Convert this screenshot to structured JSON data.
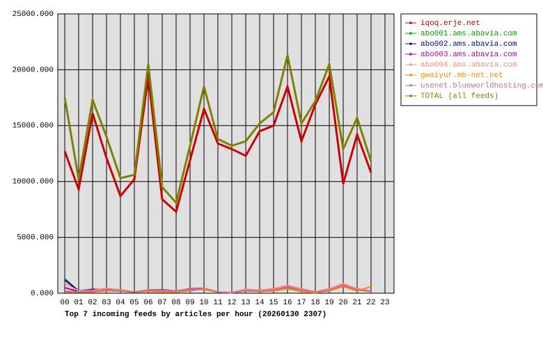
{
  "chart_data": {
    "type": "line",
    "title": "Top 7 incoming feeds by articles per hour (20260130 2307)",
    "categories": [
      "00",
      "01",
      "02",
      "03",
      "04",
      "05",
      "06",
      "07",
      "08",
      "09",
      "10",
      "11",
      "12",
      "13",
      "14",
      "15",
      "16",
      "17",
      "18",
      "19",
      "20",
      "21",
      "22",
      "23"
    ],
    "ylim": [
      0,
      25000
    ],
    "yticks": [
      {
        "value": 0,
        "label": "0.000"
      },
      {
        "value": 5000,
        "label": "5000.000"
      },
      {
        "value": 10000,
        "label": "10000.000"
      },
      {
        "value": 15000,
        "label": "15000.000"
      },
      {
        "value": 20000,
        "label": "20000.000"
      },
      {
        "value": 25000,
        "label": "25000.000"
      }
    ],
    "grid": true,
    "legend": "outside-right",
    "series": [
      {
        "name": "iqoq.erje.net",
        "color": "#cc0000",
        "values": [
          12700,
          9300,
          16100,
          12100,
          8700,
          10200,
          19400,
          8400,
          7300,
          11900,
          16500,
          13400,
          12900,
          12300,
          14500,
          15000,
          18500,
          13600,
          16900,
          19400,
          9800,
          14200,
          10800,
          null
        ]
      },
      {
        "name": "abo001.ams.abavia.com",
        "color": "#00a000",
        "values": [
          1300,
          200,
          300,
          250,
          200,
          100,
          250,
          250,
          200,
          300,
          400,
          100,
          50,
          250,
          200,
          300,
          500,
          300,
          100,
          300,
          600,
          300,
          200,
          null
        ]
      },
      {
        "name": "abo002.ams.abavia.com",
        "color": "#0000b0",
        "values": [
          1200,
          200,
          350,
          300,
          200,
          100,
          300,
          300,
          200,
          350,
          400,
          100,
          50,
          300,
          250,
          350,
          600,
          350,
          100,
          350,
          750,
          350,
          200,
          null
        ]
      },
      {
        "name": "abo003.ams.abavia.com",
        "color": "#b000b0",
        "values": [
          500,
          150,
          300,
          400,
          250,
          100,
          300,
          300,
          200,
          400,
          450,
          100,
          50,
          350,
          250,
          400,
          650,
          400,
          100,
          400,
          800,
          400,
          200,
          null
        ]
      },
      {
        "name": "abo004.ams.abavia.com",
        "color": "#ff8888",
        "values": [
          900,
          200,
          250,
          450,
          300,
          100,
          300,
          250,
          200,
          350,
          400,
          100,
          50,
          350,
          250,
          400,
          700,
          400,
          100,
          400,
          850,
          400,
          200,
          null
        ]
      },
      {
        "name": "gwaiyur.mb-net.net",
        "color": "#ff8800",
        "values": [
          100,
          100,
          100,
          200,
          300,
          100,
          150,
          100,
          100,
          200,
          450,
          100,
          50,
          200,
          150,
          200,
          400,
          150,
          50,
          200,
          600,
          200,
          600,
          null
        ]
      },
      {
        "name": "usenet.blueworldhosting.com",
        "color": "#c87090",
        "values": [
          200,
          100,
          200,
          300,
          200,
          100,
          250,
          200,
          200,
          300,
          350,
          100,
          50,
          250,
          200,
          300,
          550,
          300,
          100,
          300,
          700,
          300,
          150,
          null
        ]
      },
      {
        "name": "TOTAL (all feeds)",
        "color": "#808000",
        "values": [
          17500,
          10200,
          17300,
          14000,
          10300,
          10600,
          20500,
          9500,
          8100,
          13200,
          18500,
          13800,
          13200,
          13600,
          15200,
          16200,
          21300,
          15200,
          17200,
          20500,
          12900,
          15700,
          11800,
          null
        ]
      }
    ]
  }
}
